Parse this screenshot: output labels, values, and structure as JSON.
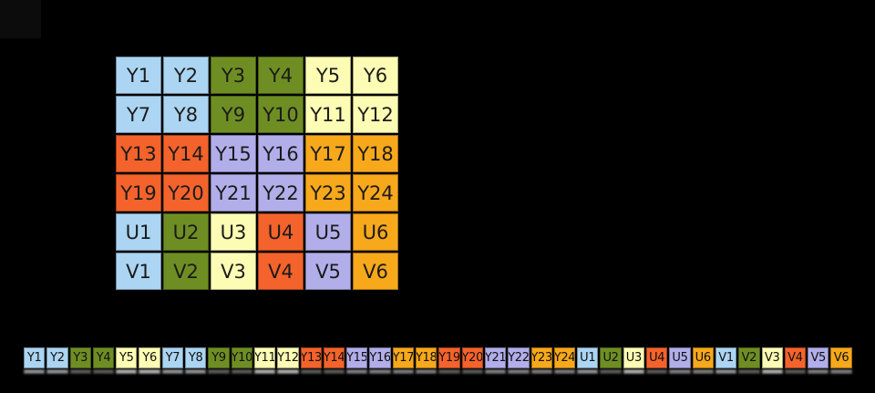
{
  "palette": {
    "blue": "#abd5f2",
    "olive": "#6e8e23",
    "yellow": "#fcfcb4",
    "red": "#f4632b",
    "purple": "#b1aeea",
    "orange": "#f7a81b"
  },
  "pixel_grid": {
    "rows": [
      [
        [
          "Y1",
          "blue"
        ],
        [
          "Y2",
          "blue"
        ],
        [
          "Y3",
          "olive"
        ],
        [
          "Y4",
          "olive"
        ],
        [
          "Y5",
          "yellow"
        ],
        [
          "Y6",
          "yellow"
        ]
      ],
      [
        [
          "Y7",
          "blue"
        ],
        [
          "Y8",
          "blue"
        ],
        [
          "Y9",
          "olive"
        ],
        [
          "Y10",
          "olive"
        ],
        [
          "Y11",
          "yellow"
        ],
        [
          "Y12",
          "yellow"
        ]
      ],
      [
        [
          "Y13",
          "red"
        ],
        [
          "Y14",
          "red"
        ],
        [
          "Y15",
          "purple"
        ],
        [
          "Y16",
          "purple"
        ],
        [
          "Y17",
          "orange"
        ],
        [
          "Y18",
          "orange"
        ]
      ],
      [
        [
          "Y19",
          "red"
        ],
        [
          "Y20",
          "red"
        ],
        [
          "Y21",
          "purple"
        ],
        [
          "Y22",
          "purple"
        ],
        [
          "Y23",
          "orange"
        ],
        [
          "Y24",
          "orange"
        ]
      ],
      [
        [
          "U1",
          "blue"
        ],
        [
          "U2",
          "olive"
        ],
        [
          "U3",
          "yellow"
        ],
        [
          "U4",
          "red"
        ],
        [
          "U5",
          "purple"
        ],
        [
          "U6",
          "orange"
        ]
      ],
      [
        [
          "V1",
          "blue"
        ],
        [
          "V2",
          "olive"
        ],
        [
          "V3",
          "yellow"
        ],
        [
          "V4",
          "red"
        ],
        [
          "V5",
          "purple"
        ],
        [
          "V6",
          "orange"
        ]
      ]
    ]
  },
  "memory_strip": {
    "cells": [
      [
        "Y1",
        "blue"
      ],
      [
        "Y2",
        "blue"
      ],
      [
        "Y3",
        "olive"
      ],
      [
        "Y4",
        "olive"
      ],
      [
        "Y5",
        "yellow"
      ],
      [
        "Y6",
        "yellow"
      ],
      [
        "Y7",
        "blue"
      ],
      [
        "Y8",
        "blue"
      ],
      [
        "Y9",
        "olive"
      ],
      [
        "Y10",
        "olive"
      ],
      [
        "Y11",
        "yellow"
      ],
      [
        "Y12",
        "yellow"
      ],
      [
        "Y13",
        "red"
      ],
      [
        "Y14",
        "red"
      ],
      [
        "Y15",
        "purple"
      ],
      [
        "Y16",
        "purple"
      ],
      [
        "Y17",
        "orange"
      ],
      [
        "Y18",
        "orange"
      ],
      [
        "Y19",
        "red"
      ],
      [
        "Y20",
        "red"
      ],
      [
        "Y21",
        "purple"
      ],
      [
        "Y22",
        "purple"
      ],
      [
        "Y23",
        "orange"
      ],
      [
        "Y24",
        "orange"
      ],
      [
        "U1",
        "blue"
      ],
      [
        "U2",
        "olive"
      ],
      [
        "U3",
        "yellow"
      ],
      [
        "U4",
        "red"
      ],
      [
        "U5",
        "purple"
      ],
      [
        "U6",
        "orange"
      ],
      [
        "V1",
        "blue"
      ],
      [
        "V2",
        "olive"
      ],
      [
        "V3",
        "yellow"
      ],
      [
        "V4",
        "red"
      ],
      [
        "V5",
        "purple"
      ],
      [
        "V6",
        "orange"
      ]
    ]
  }
}
